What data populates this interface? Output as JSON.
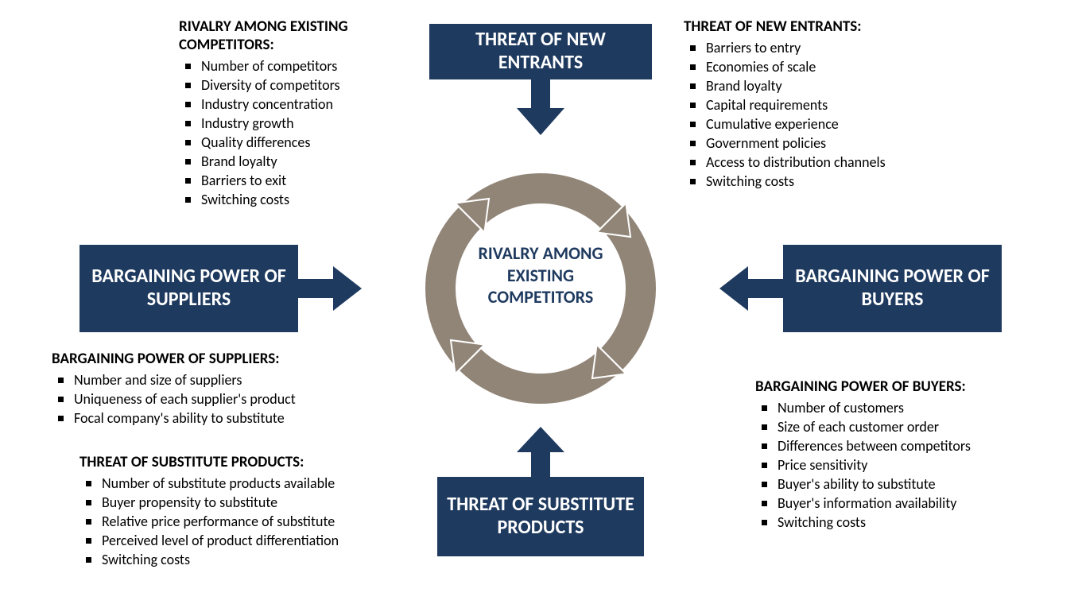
{
  "diagram": {
    "type": "infographic",
    "background_color": "#ffffff",
    "box_color": "#1f3a5f",
    "box_text_color": "#ffffff",
    "center_text_color": "#1f3a5f",
    "ring_color": "#918578",
    "arrow_color": "#1f3a5f",
    "bullet_color": "#000000",
    "body_font_size": 18,
    "box_font_size": 24,
    "center_font_size": 22,
    "title_font_size": 19
  },
  "center": {
    "label": "RIVALRY AMONG EXISTING COMPETITORS"
  },
  "forces": {
    "top": {
      "label": "THREAT OF NEW ENTRANTS"
    },
    "left": {
      "label": "BARGAINING POWER OF SUPPLIERS"
    },
    "right": {
      "label": "BARGAINING POWER OF BUYERS"
    },
    "bottom": {
      "label": "THREAT OF SUBSTITUTE PRODUCTS"
    }
  },
  "sections": {
    "rivalry": {
      "title": "RIVALRY AMONG EXISTING COMPETITORS:",
      "items": [
        "Number of competitors",
        "Diversity of competitors",
        "Industry concentration",
        "Industry growth",
        "Quality differences",
        "Brand loyalty",
        "Barriers to exit",
        "Switching costs"
      ]
    },
    "new_entrants": {
      "title": "THREAT OF NEW ENTRANTS:",
      "items": [
        "Barriers to entry",
        "Economies of scale",
        "Brand loyalty",
        "Capital requirements",
        "Cumulative experience",
        "Government policies",
        "Access to distribution channels",
        "Switching costs"
      ]
    },
    "suppliers": {
      "title": "BARGAINING POWER OF SUPPLIERS:",
      "items": [
        "Number  and size of suppliers",
        "Uniqueness of each supplier's product",
        "Focal company's ability to substitute"
      ]
    },
    "substitutes": {
      "title": "THREAT OF SUBSTITUTE PRODUCTS:",
      "items": [
        "Number of substitute products available",
        "Buyer propensity to substitute",
        "Relative price performance of substitute",
        "Perceived level of product differentiation",
        "Switching costs"
      ]
    },
    "buyers": {
      "title": "BARGAINING POWER OF BUYERS:",
      "items": [
        "Number of customers",
        "Size of each customer order",
        "Differences between competitors",
        "Price sensitivity",
        "Buyer's ability to substitute",
        "Buyer's information availability",
        "Switching costs"
      ]
    }
  }
}
